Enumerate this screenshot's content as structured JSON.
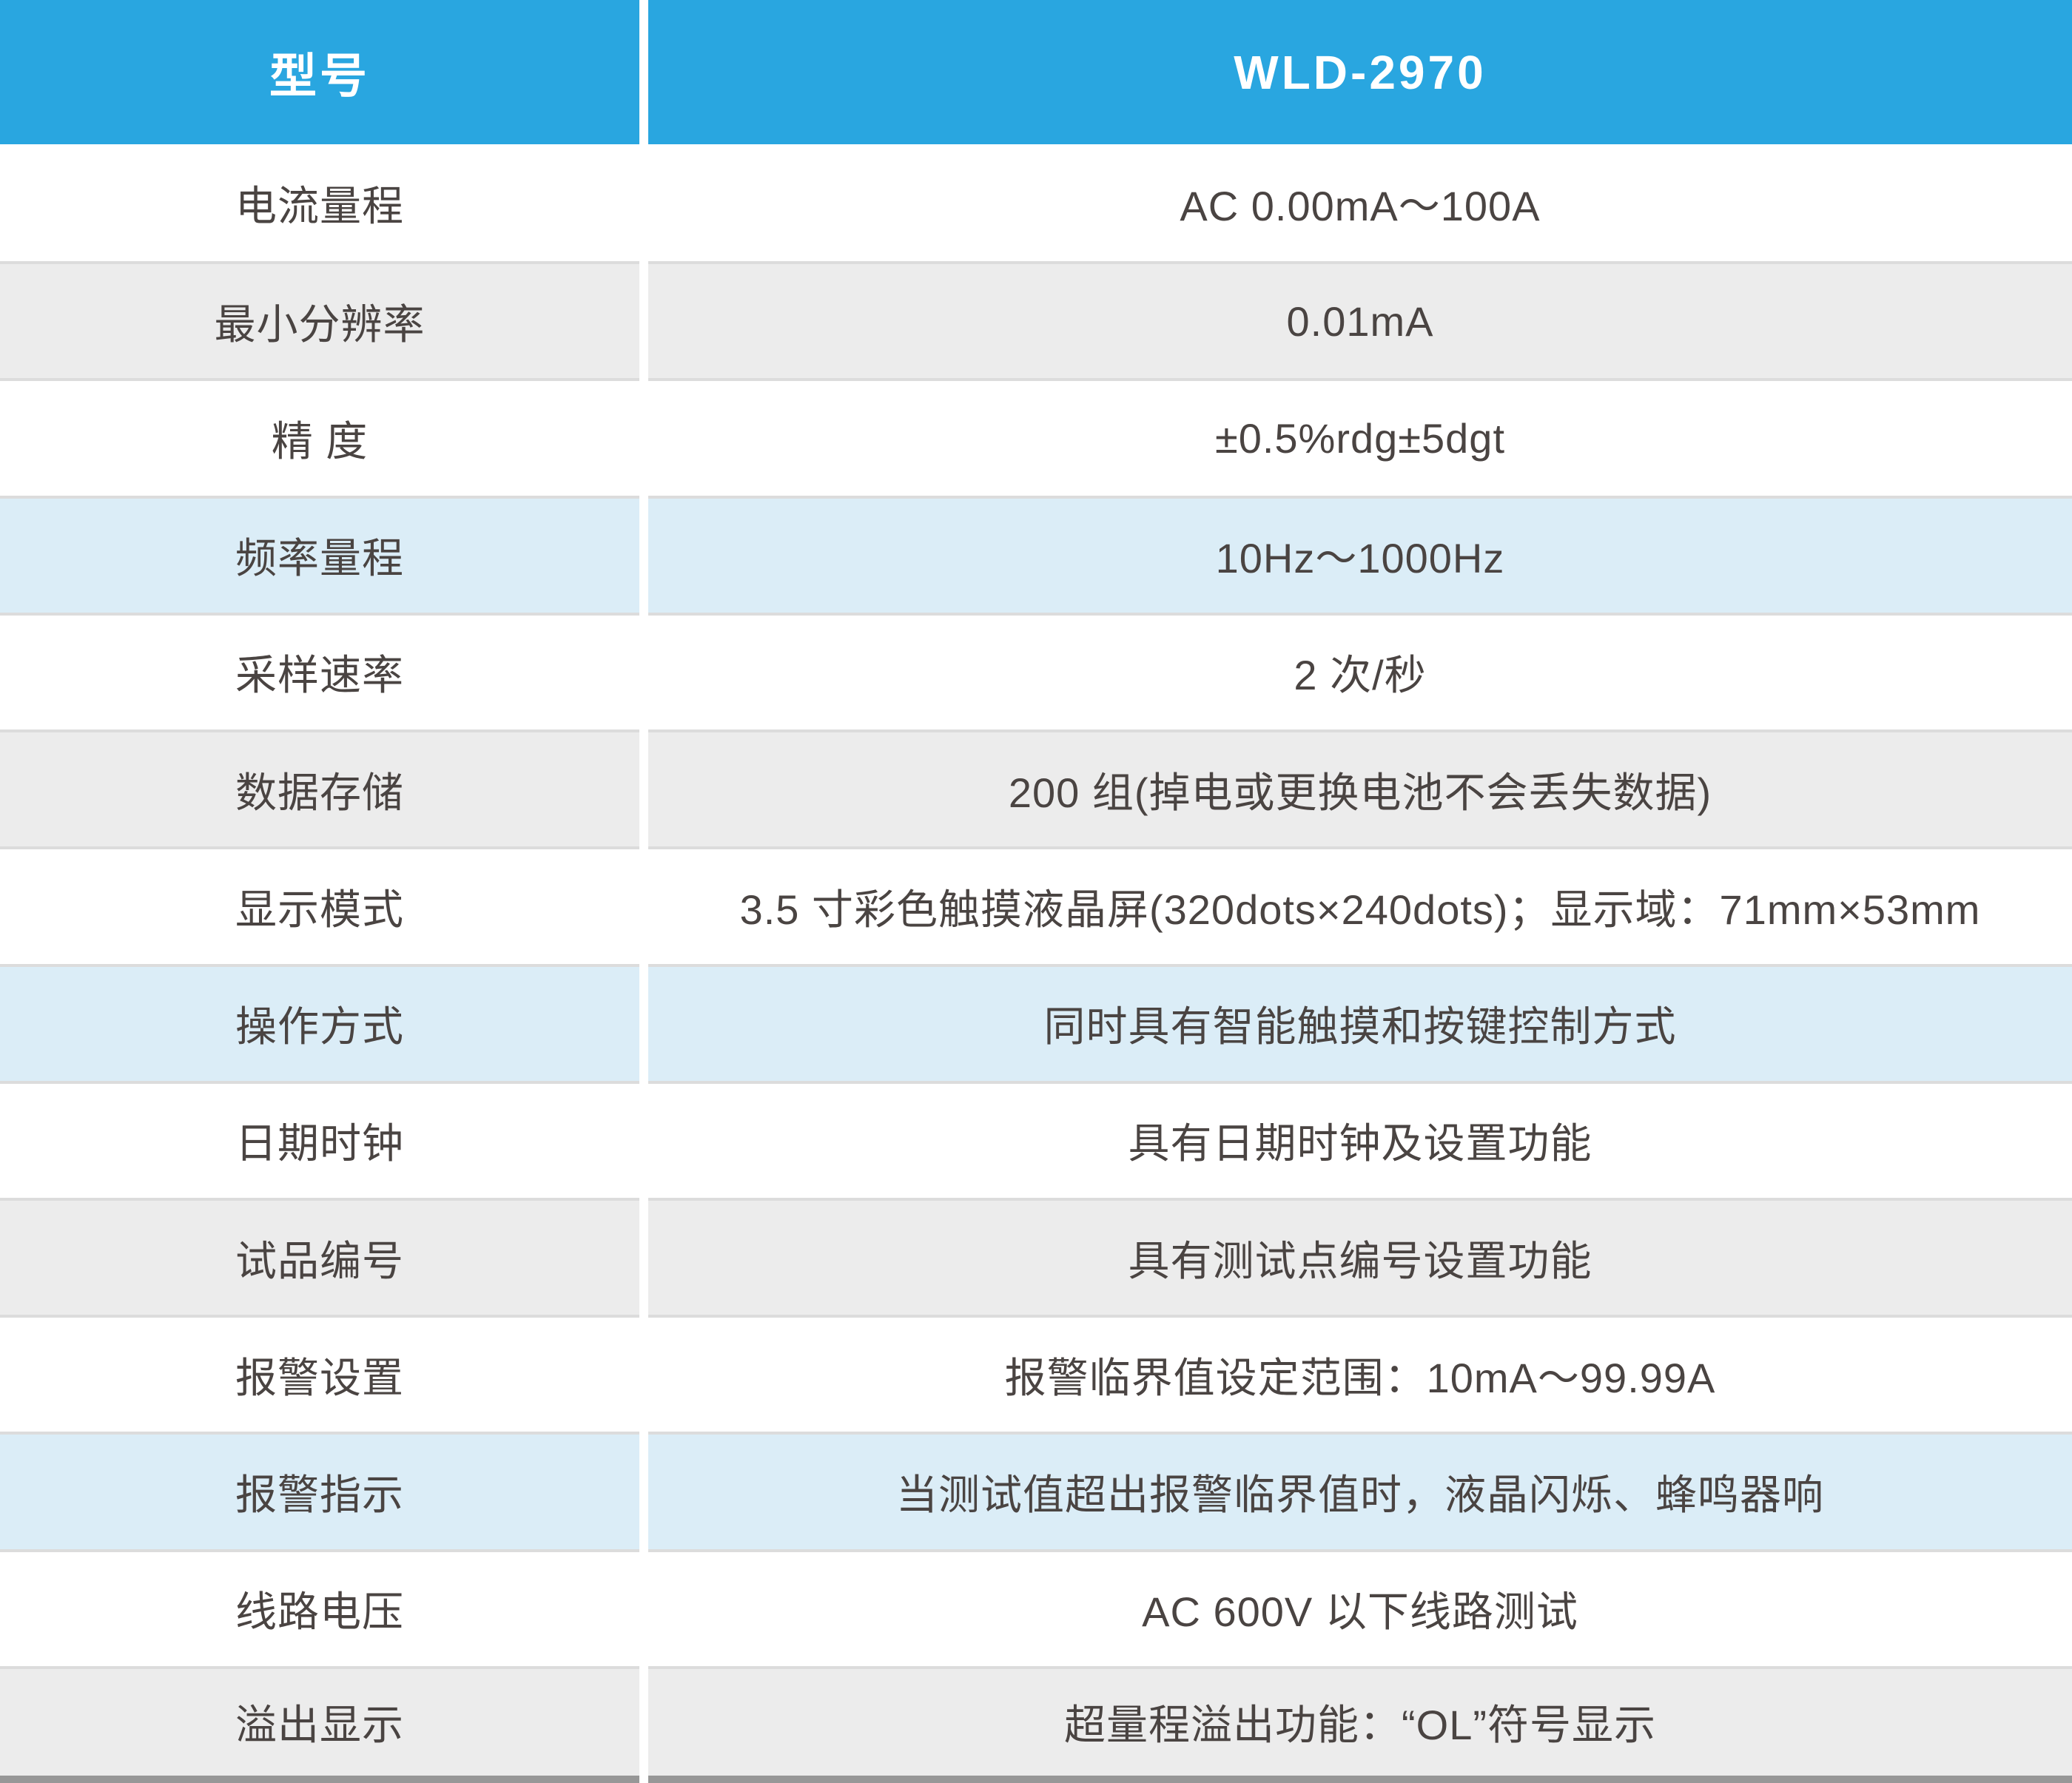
{
  "table": {
    "header": {
      "col1": "型号",
      "col2": "WLD-2970"
    },
    "rows": [
      {
        "label": "电流量程",
        "value": "AC 0.00mA～100A",
        "variant": "white"
      },
      {
        "label": "最小分辨率",
        "value": "0.01mA",
        "variant": "gray"
      },
      {
        "label": "精 度",
        "value": "±0.5%rdg±5dgt",
        "variant": "white"
      },
      {
        "label": "频率量程",
        "value": "10Hz～1000Hz",
        "variant": "blue"
      },
      {
        "label": "采样速率",
        "value": "2 次/秒",
        "variant": "white"
      },
      {
        "label": "数据存储",
        "value": "200 组(掉电或更换电池不会丢失数据)",
        "variant": "gray"
      },
      {
        "label": "显示模式",
        "value": "3.5 寸彩色触摸液晶屏(320dots×240dots)；显示域：71mm×53mm",
        "variant": "white"
      },
      {
        "label": "操作方式",
        "value": "同时具有智能触摸和按键控制方式",
        "variant": "blue"
      },
      {
        "label": "日期时钟",
        "value": "具有日期时钟及设置功能",
        "variant": "white"
      },
      {
        "label": "试品编号",
        "value": "具有测试点编号设置功能",
        "variant": "gray"
      },
      {
        "label": "报警设置",
        "value": "报警临界值设定范围：10mA～99.99A",
        "variant": "white"
      },
      {
        "label": "报警指示",
        "value": "当测试值超出报警临界值时，液晶闪烁、蜂鸣器响",
        "variant": "blue"
      },
      {
        "label": "线路电压",
        "value": "AC 600V 以下线路测试",
        "variant": "white"
      },
      {
        "label": "溢出显示",
        "value": "超量程溢出功能：“OL”符号显示",
        "variant": "gray"
      }
    ],
    "colors": {
      "header_background": "#29A6E0",
      "header_text": "#FFFFFF",
      "row_gray": "#ECECEC",
      "row_light_blue": "#DBEDF7",
      "row_white": "#FFFFFF",
      "separator": "#DCDCDC",
      "bottom_edge": "#979797",
      "body_text": "#4A4442"
    }
  }
}
